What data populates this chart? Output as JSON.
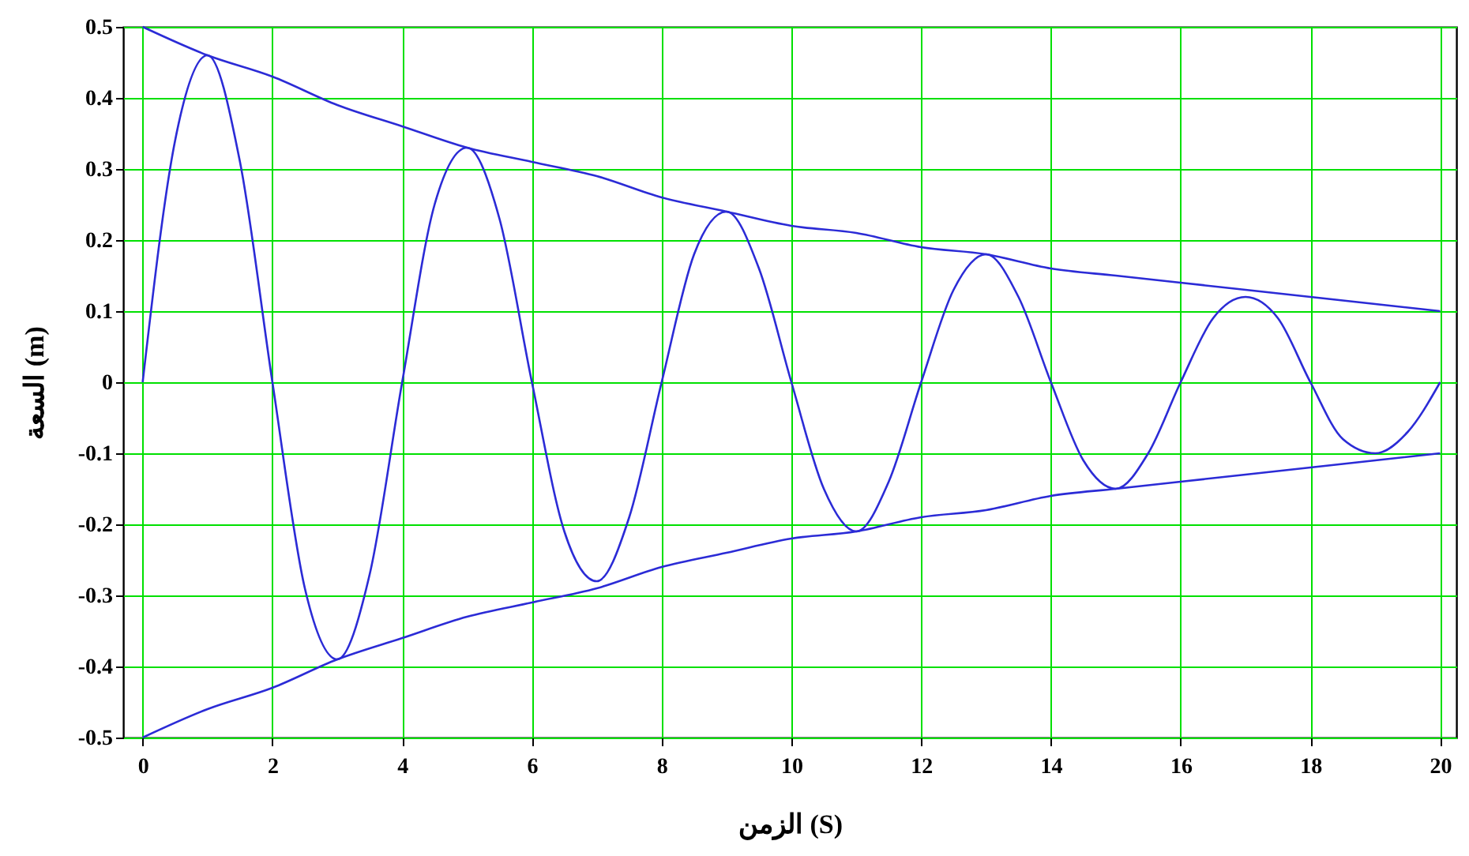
{
  "chart_data": {
    "type": "line",
    "xlabel": "الزمن (S)",
    "ylabel": "السعة (m)",
    "xlim": [
      -0.3,
      20.25
    ],
    "ylim": [
      -0.5,
      0.5
    ],
    "xticks": [
      0,
      2,
      4,
      6,
      8,
      10,
      12,
      14,
      16,
      18,
      20
    ],
    "yticks": [
      -0.5,
      -0.4,
      -0.3,
      -0.2,
      -0.1,
      0,
      0.1,
      0.2,
      0.3,
      0.4,
      0.5
    ],
    "grid": true,
    "legend": false,
    "line_style": "solid",
    "series": [
      {
        "color": "#2b2bd6",
        "x": [
          0,
          0.5,
          1,
          1.5,
          2,
          2.5,
          3,
          3.5,
          4,
          4.5,
          5,
          5.5,
          6,
          6.5,
          7,
          7.5,
          8,
          8.5,
          9,
          9.5,
          10,
          10.5,
          11,
          11.5,
          12,
          12.5,
          13,
          13.5,
          14,
          14.5,
          15,
          15.5,
          16,
          16.5,
          17,
          17.5,
          18,
          18.5,
          19,
          19.5,
          20
        ],
        "values": [
          0,
          0.34,
          0.46,
          0.31,
          0,
          -0.29,
          -0.39,
          -0.27,
          0,
          0.25,
          0.33,
          0.23,
          0,
          -0.21,
          -0.28,
          -0.19,
          0,
          0.18,
          0.24,
          0.16,
          0,
          -0.15,
          -0.21,
          -0.14,
          0,
          0.13,
          0.18,
          0.12,
          0,
          -0.11,
          -0.15,
          -0.1,
          0,
          0.09,
          0.12,
          0.09,
          0,
          -0.08,
          -0.1,
          -0.07,
          0
        ]
      },
      {
        "color": "#2b2bd6",
        "x": [
          0,
          1,
          2,
          3,
          4,
          5,
          6,
          7,
          8,
          9,
          10,
          11,
          12,
          13,
          14,
          15,
          16,
          17,
          18,
          19,
          20
        ],
        "values": [
          0.5,
          0.46,
          0.43,
          0.39,
          0.36,
          0.33,
          0.31,
          0.29,
          0.26,
          0.24,
          0.22,
          0.21,
          0.19,
          0.18,
          0.16,
          0.15,
          0.14,
          0.13,
          0.12,
          0.11,
          0.1
        ]
      },
      {
        "color": "#2b2bd6",
        "x": [
          0,
          1,
          2,
          3,
          4,
          5,
          6,
          7,
          8,
          9,
          10,
          11,
          12,
          13,
          14,
          15,
          16,
          17,
          18,
          19,
          20
        ],
        "values": [
          -0.5,
          -0.46,
          -0.43,
          -0.39,
          -0.36,
          -0.33,
          -0.31,
          -0.29,
          -0.26,
          -0.24,
          -0.22,
          -0.21,
          -0.19,
          -0.18,
          -0.16,
          -0.15,
          -0.14,
          -0.13,
          -0.12,
          -0.11,
          -0.1
        ]
      }
    ]
  }
}
